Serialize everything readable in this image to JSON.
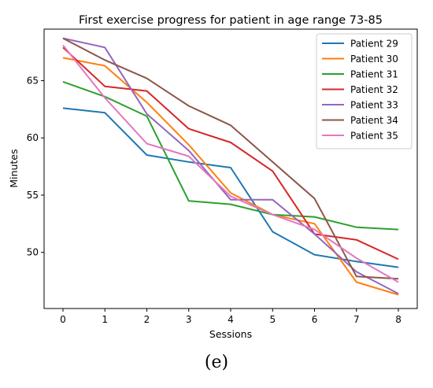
{
  "chart_data": {
    "type": "line",
    "title": "First exercise progress for patient in age range 73-85",
    "xlabel": "Sessions",
    "ylabel": "Minutes",
    "x": [
      0,
      1,
      2,
      3,
      4,
      5,
      6,
      7,
      8
    ],
    "xticks": [
      "0",
      "1",
      "2",
      "3",
      "4",
      "5",
      "6",
      "7",
      "8"
    ],
    "yticks": [
      50,
      55,
      60,
      65
    ],
    "xlim": [
      -0.45,
      8.45
    ],
    "ylim": [
      45.1,
      69.5
    ],
    "grid": false,
    "legend_position": "top-right",
    "series": [
      {
        "name": "Patient 29",
        "color": "#1f77b4",
        "values": [
          62.6,
          62.2,
          58.5,
          57.9,
          57.4,
          51.8,
          49.8,
          49.2,
          48.7
        ]
      },
      {
        "name": "Patient 30",
        "color": "#ff7f0e",
        "values": [
          67.0,
          66.3,
          63.1,
          59.4,
          55.2,
          53.3,
          52.5,
          47.4,
          46.3
        ]
      },
      {
        "name": "Patient 31",
        "color": "#2ca02c",
        "values": [
          64.9,
          63.6,
          61.9,
          54.5,
          54.2,
          53.3,
          53.1,
          52.2,
          52.0
        ]
      },
      {
        "name": "Patient 32",
        "color": "#d62728",
        "values": [
          67.9,
          64.5,
          64.1,
          60.8,
          59.6,
          57.1,
          51.6,
          51.1,
          49.4
        ]
      },
      {
        "name": "Patient 33",
        "color": "#9467bd",
        "values": [
          68.7,
          67.9,
          62.1,
          58.9,
          54.6,
          54.6,
          51.6,
          48.3,
          46.4
        ]
      },
      {
        "name": "Patient 34",
        "color": "#8c564b",
        "values": [
          68.7,
          66.8,
          65.2,
          62.8,
          61.1,
          57.9,
          54.7,
          47.9,
          47.7
        ]
      },
      {
        "name": "Patient 35",
        "color": "#e377c2",
        "values": [
          68.1,
          63.5,
          59.5,
          58.4,
          54.9,
          53.3,
          52.0,
          49.5,
          47.4
        ]
      }
    ]
  },
  "caption": "(e)"
}
